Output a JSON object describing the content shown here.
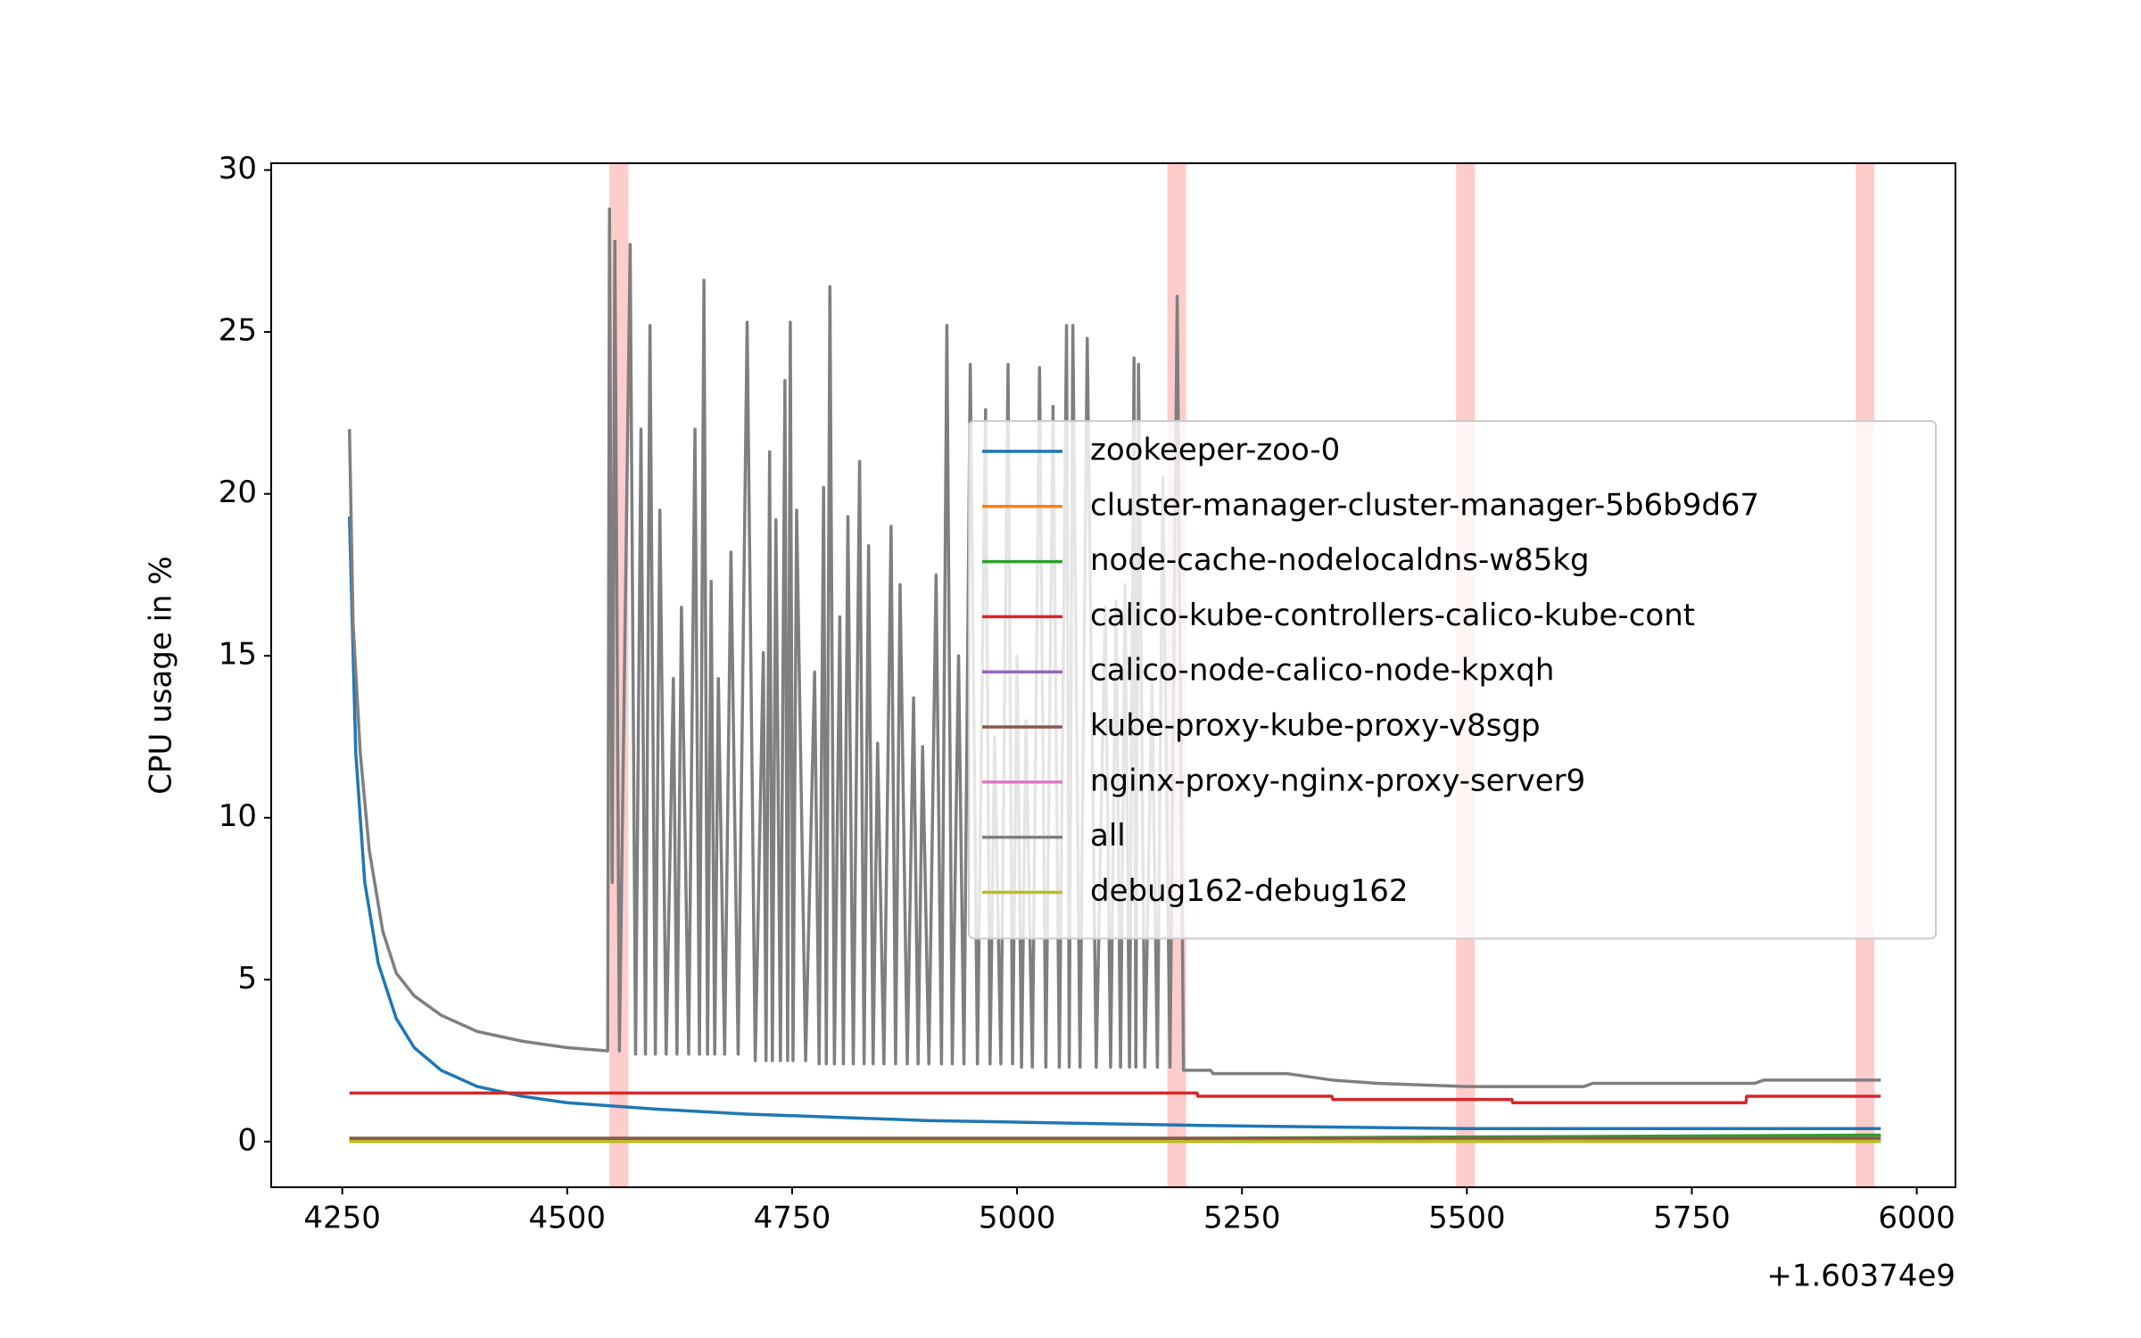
{
  "chart_data": {
    "type": "line",
    "ylabel": "CPU usage in %",
    "x_offset_label": "+1.60374e9",
    "xlim": [
      4171,
      6043
    ],
    "xticks": [
      4250,
      4500,
      4750,
      5000,
      5250,
      5500,
      5750,
      6000
    ],
    "ylim": [
      -1.41,
      30.21
    ],
    "yticks": [
      0,
      5,
      10,
      15,
      20,
      25,
      30
    ],
    "grid": false,
    "legend": "upper right",
    "span_color": "#ff9999",
    "spans": [
      [
        4547,
        4568
      ],
      [
        5167,
        5188
      ],
      [
        5488,
        5509
      ],
      [
        5932,
        5953
      ]
    ],
    "series": [
      {
        "name": "zookeeper-zoo-0",
        "color": "#1f77b4",
        "x": [
          4258,
          4265,
          4275,
          4290,
          4310,
          4330,
          4360,
          4400,
          4450,
          4500,
          4550,
          4600,
          4700,
          4800,
          4900,
          5000,
          5100,
          5200,
          5350,
          5500,
          5960
        ],
        "values": [
          19.3,
          12,
          8,
          5.5,
          3.8,
          2.9,
          2.2,
          1.7,
          1.4,
          1.2,
          1.1,
          1.0,
          0.85,
          0.75,
          0.65,
          0.6,
          0.55,
          0.5,
          0.45,
          0.4,
          0.4
        ]
      },
      {
        "name": "cluster-manager-cluster-manager-5b6b9d67",
        "color": "#ff7f0e",
        "x": [
          4258,
          5960
        ],
        "values": [
          0,
          0
        ]
      },
      {
        "name": "node-cache-nodelocaldns-w85kg",
        "color": "#2ca02c",
        "x": [
          4258,
          5180,
          5960
        ],
        "values": [
          0.1,
          0.1,
          0.2
        ]
      },
      {
        "name": "calico-kube-controllers-calico-kube-cont",
        "color": "#d62728",
        "x": [
          4258,
          5200,
          5201,
          5350,
          5351,
          5550,
          5551,
          5810,
          5811,
          5960
        ],
        "values": [
          1.5,
          1.5,
          1.4,
          1.4,
          1.3,
          1.3,
          1.2,
          1.2,
          1.4,
          1.4
        ]
      },
      {
        "name": "calico-node-calico-node-kpxqh",
        "color": "#9467bd",
        "x": [
          4258,
          5960
        ],
        "values": [
          0,
          0
        ]
      },
      {
        "name": "kube-proxy-kube-proxy-v8sgp",
        "color": "#8c564b",
        "x": [
          4258,
          5960
        ],
        "values": [
          0.1,
          0.1
        ]
      },
      {
        "name": "nginx-proxy-nginx-proxy-server9",
        "color": "#e377c2",
        "x": [
          4258,
          5960
        ],
        "values": [
          0,
          0
        ]
      },
      {
        "name": "all",
        "color": "#7f7f7f",
        "x": [
          4258,
          4262,
          4270,
          4280,
          4295,
          4310,
          4330,
          4360,
          4400,
          4450,
          4500,
          4545,
          4547,
          4550,
          4553,
          4558,
          4570,
          4576,
          4582,
          4587,
          4592,
          4598,
          4603,
          4610,
          4618,
          4622,
          4627,
          4635,
          4642,
          4647,
          4652,
          4656,
          4660,
          4664,
          4668,
          4675,
          4682,
          4690,
          4700,
          4709,
          4718,
          4721,
          4725,
          4728,
          4732,
          4737,
          4742,
          4745,
          4748,
          4751,
          4755,
          4765,
          4775,
          4780,
          4785,
          4788,
          4792,
          4797,
          4803,
          4807,
          4812,
          4818,
          4825,
          4830,
          4835,
          4840,
          4845,
          4852,
          4860,
          4865,
          4870,
          4878,
          4885,
          4890,
          4895,
          4902,
          4910,
          4916,
          4922,
          4928,
          4935,
          4941,
          4948,
          4956,
          4965,
          4970,
          4975,
          4982,
          4990,
          4995,
          5000,
          5005,
          5010,
          5017,
          5025,
          5032,
          5040,
          5047,
          5055,
          5058,
          5062,
          5070,
          5078,
          5088,
          5098,
          5104,
          5110,
          5115,
          5120,
          5125,
          5130,
          5132,
          5135,
          5142,
          5150,
          5156,
          5162,
          5170,
          5178,
          5185,
          5215,
          5218,
          5300,
          5350,
          5400,
          5500,
          5630,
          5640,
          5820,
          5830,
          5960
        ],
        "values": [
          22.0,
          16.0,
          12.0,
          9.0,
          6.5,
          5.2,
          4.5,
          3.9,
          3.4,
          3.1,
          2.9,
          2.8,
          28.8,
          8.0,
          27.8,
          2.8,
          27.7,
          2.7,
          22.0,
          2.7,
          25.2,
          2.7,
          19.5,
          2.7,
          14.3,
          2.7,
          16.5,
          2.7,
          22.0,
          2.7,
          26.6,
          2.7,
          17.3,
          2.7,
          14.3,
          2.7,
          18.2,
          2.7,
          25.3,
          2.5,
          15.1,
          2.5,
          21.3,
          2.5,
          19.2,
          2.5,
          23.5,
          2.5,
          25.3,
          2.5,
          19.5,
          2.5,
          14.5,
          2.4,
          20.2,
          2.4,
          26.4,
          2.4,
          16.2,
          2.4,
          19.3,
          2.4,
          21.0,
          2.4,
          18.4,
          2.4,
          12.3,
          2.4,
          19.0,
          2.4,
          17.2,
          2.4,
          13.7,
          2.4,
          12.2,
          2.4,
          17.5,
          2.4,
          25.2,
          2.4,
          15.0,
          2.4,
          24.0,
          2.4,
          22.6,
          2.4,
          12.5,
          2.4,
          24.0,
          2.4,
          15.0,
          2.3,
          13.0,
          2.3,
          23.9,
          2.3,
          22.7,
          2.3,
          25.2,
          2.3,
          25.2,
          2.3,
          24.8,
          2.3,
          16.5,
          2.3,
          16.7,
          2.3,
          17.2,
          2.3,
          24.2,
          2.3,
          24.0,
          2.3,
          14.1,
          2.3,
          20.5,
          2.3,
          26.1,
          2.2,
          2.2,
          2.1,
          2.1,
          1.9,
          1.8,
          1.7,
          1.7,
          1.8,
          1.8,
          1.9,
          1.9
        ]
      },
      {
        "name": "debug162-debug162",
        "color": "#bcbd22",
        "x": [
          4258,
          5960
        ],
        "values": [
          0,
          0
        ]
      }
    ]
  }
}
